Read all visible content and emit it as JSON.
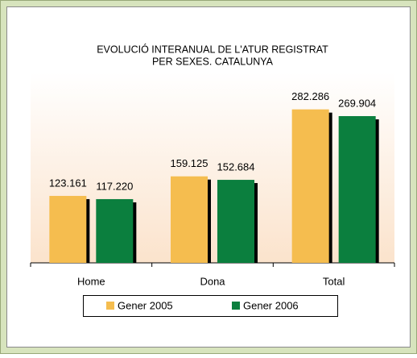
{
  "chart_data": {
    "type": "bar",
    "title": [
      "EVOLUCIÓ INTERANUAL DE L'ATUR REGISTRAT",
      "PER SEXES. CATALUNYA"
    ],
    "categories": [
      "Home",
      "Dona",
      "Total"
    ],
    "series": [
      {
        "name": "Gener 2005",
        "color": "#f5bd4f",
        "values": [
          123161,
          159125,
          282286
        ],
        "value_labels": [
          "123.161",
          "159.125",
          "282.286"
        ]
      },
      {
        "name": "Gener 2006",
        "color": "#0b7f3e",
        "values": [
          117220,
          152684,
          269904
        ],
        "value_labels": [
          "117.220",
          "152.684",
          "269.904"
        ]
      }
    ],
    "ylim": [
      0,
      350000
    ]
  }
}
